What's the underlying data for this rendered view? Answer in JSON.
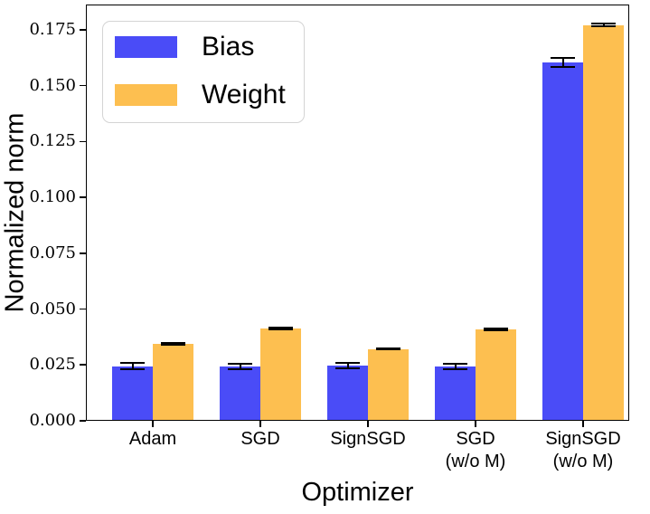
{
  "chart_data": {
    "type": "bar",
    "title": "",
    "xlabel": "Optimizer",
    "ylabel": "Normalized norm",
    "categories": [
      "Adam",
      "SGD",
      "SignSGD",
      "SGD\n(w/o M)",
      "SignSGD\n(w/o M)"
    ],
    "series": [
      {
        "name": "Bias",
        "color": "#4a4cf7",
        "values": [
          0.0244,
          0.0244,
          0.0248,
          0.0243,
          0.1605
        ],
        "errors": [
          0.0015,
          0.0012,
          0.0013,
          0.0013,
          0.002
        ]
      },
      {
        "name": "Weight",
        "color": "#fdbf50",
        "values": [
          0.0344,
          0.0414,
          0.0321,
          0.0411,
          0.177
        ],
        "errors": [
          0.0004,
          0.0003,
          0.0003,
          0.0004,
          0.0006
        ]
      }
    ],
    "ylim": [
      0,
      0.1863
    ],
    "yticks": [
      0,
      0.025,
      0.05,
      0.075,
      0.1,
      0.125,
      0.15,
      0.175
    ],
    "ytick_labels": [
      "0.000",
      "0.025",
      "0.050",
      "0.075",
      "0.100",
      "0.125",
      "0.150",
      "0.175"
    ],
    "grid": false,
    "legend_position": "upper left",
    "error_color": "#000000",
    "spine_color": "#000000"
  }
}
